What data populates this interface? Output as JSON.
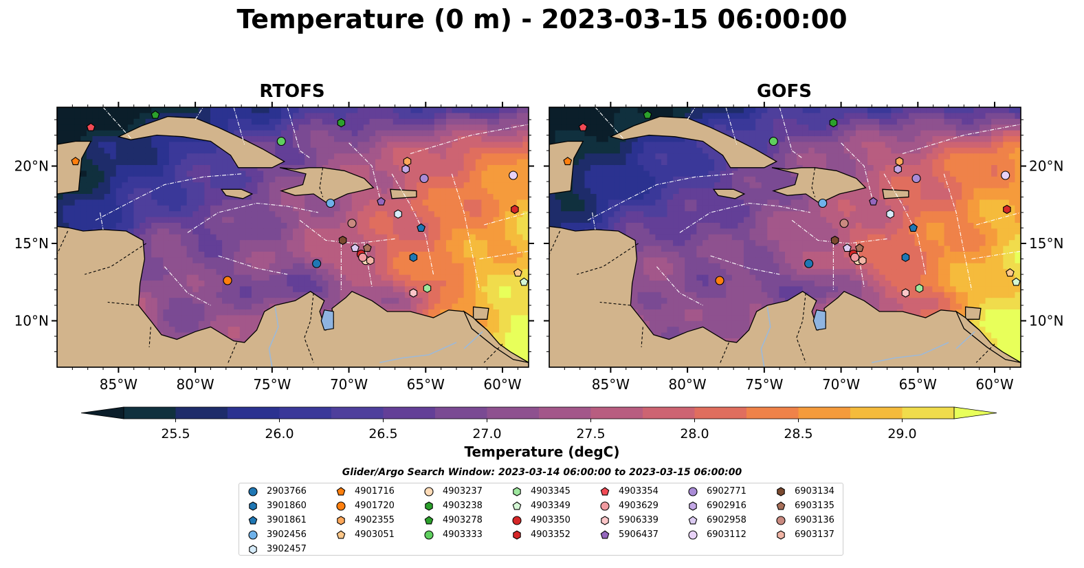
{
  "title": "Temperature (0 m) - 2023-03-15 06:00:00",
  "panels": [
    {
      "title": "RTOFS"
    },
    {
      "title": "GOFS"
    }
  ],
  "axes": {
    "x_ticks": [
      "85°W",
      "80°W",
      "75°W",
      "70°W",
      "65°W",
      "60°W"
    ],
    "x_values": [
      -85,
      -80,
      -75,
      -70,
      -65,
      -60
    ],
    "y_ticks": [
      "20°N",
      "15°N",
      "10°N"
    ],
    "y_values": [
      20,
      15,
      10
    ],
    "xlim": [
      -89,
      -58.3
    ],
    "ylim": [
      7,
      23.8
    ]
  },
  "colorbar": {
    "label": "Temperature (degC)",
    "range": [
      25.25,
      29.25
    ],
    "step": 0.25,
    "ticks": [
      "25.5",
      "26.0",
      "26.5",
      "27.0",
      "27.5",
      "28.0",
      "28.5",
      "29.0"
    ],
    "tick_values": [
      25.5,
      26.0,
      26.5,
      27.0,
      27.5,
      28.0,
      28.5,
      29.0
    ],
    "colors": [
      "#10303e",
      "#1e2c6a",
      "#2b3290",
      "#3a3899",
      "#4e3f9c",
      "#633f97",
      "#7a4a93",
      "#8e518f",
      "#a3578a",
      "#b85d80",
      "#cd6472",
      "#e06e5e",
      "#ef8249",
      "#f59b3c",
      "#f5bb3c",
      "#f0dc4c"
    ],
    "under_color": "#0b1e2a",
    "over_color": "#e8ff5a"
  },
  "search_window": "Glider/Argo Search Window: 2023-03-14 06:00:00 to 2023-03-15 06:00:00",
  "chart_data": {
    "type": "heatmap",
    "title": "Temperature (0 m) - 2023-03-15 06:00:00",
    "panels": [
      "RTOFS",
      "GOFS"
    ],
    "variable": "Temperature (degC)",
    "depth_m": 0,
    "valid_time": "2023-03-15 06:00:00",
    "xlim": [
      -89,
      -58.3
    ],
    "ylim": [
      7,
      23.8
    ],
    "clim": [
      25.25,
      29.25
    ],
    "floats": [
      {
        "id": "2903766",
        "marker": "circle",
        "color": "#1f77b4",
        "lon": -72.1,
        "lat": 13.7
      },
      {
        "id": "3901860",
        "marker": "hexagon",
        "color": "#1f77b4",
        "lon": -65.8,
        "lat": 14.1
      },
      {
        "id": "3901861",
        "marker": "pentagon",
        "color": "#1f77b4",
        "lon": -65.3,
        "lat": 16.0
      },
      {
        "id": "3902456",
        "marker": "circle",
        "color": "#6fb2ea",
        "lon": -71.2,
        "lat": 17.6
      },
      {
        "id": "3902457",
        "marker": "hexagon",
        "color": "#d6ecfa",
        "lon": -66.8,
        "lat": 16.9
      },
      {
        "id": "4901716",
        "marker": "pentagon",
        "color": "#ff7f0e",
        "lon": -87.8,
        "lat": 20.3
      },
      {
        "id": "4901720",
        "marker": "circle",
        "color": "#ff7f0e",
        "lon": -77.9,
        "lat": 12.6
      },
      {
        "id": "4902355",
        "marker": "hexagon",
        "color": "#ffa85a",
        "lon": -66.2,
        "lat": 20.3
      },
      {
        "id": "4903051",
        "marker": "pentagon",
        "color": "#ffc88a",
        "lon": -59.0,
        "lat": 13.1
      },
      {
        "id": "4903237",
        "marker": "circle",
        "color": "#ffdcb8",
        "lon": -68.9,
        "lat": 13.9
      },
      {
        "id": "4903238",
        "marker": "hexagon",
        "color": "#2ca02c",
        "lon": -70.5,
        "lat": 22.8
      },
      {
        "id": "4903278",
        "marker": "pentagon",
        "color": "#2ca02c",
        "lon": -82.6,
        "lat": 23.3
      },
      {
        "id": "4903333",
        "marker": "circle",
        "color": "#5fcf5f",
        "lon": -74.4,
        "lat": 21.6
      },
      {
        "id": "4903345",
        "marker": "hexagon",
        "color": "#9ee79e",
        "lon": -64.9,
        "lat": 12.1
      },
      {
        "id": "4903349",
        "marker": "pentagon",
        "color": "#d5f7d5",
        "lon": -58.6,
        "lat": 12.5
      },
      {
        "id": "4903350",
        "marker": "circle",
        "color": "#d62728",
        "lon": -69.2,
        "lat": 14.3
      },
      {
        "id": "4903352",
        "marker": "hexagon",
        "color": "#d62728",
        "lon": -59.2,
        "lat": 17.2
      },
      {
        "id": "4903354",
        "marker": "pentagon",
        "color": "#f24a55",
        "lon": -86.8,
        "lat": 22.5
      },
      {
        "id": "4903629",
        "marker": "circle",
        "color": "#f09aa0",
        "lon": -69.1,
        "lat": 14.1
      },
      {
        "id": "5906339",
        "marker": "hexagon",
        "color": "#fbc6c8",
        "lon": -65.8,
        "lat": 11.8
      },
      {
        "id": "5906437",
        "marker": "pentagon",
        "color": "#9467bd",
        "lon": -67.9,
        "lat": 17.7
      },
      {
        "id": "6902771",
        "marker": "circle",
        "color": "#a98bd6",
        "lon": -65.1,
        "lat": 19.2
      },
      {
        "id": "6902916",
        "marker": "hexagon",
        "color": "#c4a8e6",
        "lon": -66.3,
        "lat": 19.8
      },
      {
        "id": "6902958",
        "marker": "pentagon",
        "color": "#dccbf2",
        "lon": -69.6,
        "lat": 14.7
      },
      {
        "id": "6903112",
        "marker": "circle",
        "color": "#e8d2f7",
        "lon": -59.3,
        "lat": 19.4
      },
      {
        "id": "6903134",
        "marker": "hexagon",
        "color": "#7b4a30",
        "lon": -70.4,
        "lat": 15.2
      },
      {
        "id": "6903135",
        "marker": "pentagon",
        "color": "#a8705a",
        "lon": -68.8,
        "lat": 14.7
      },
      {
        "id": "6903136",
        "marker": "circle",
        "color": "#c98a80",
        "lon": -69.8,
        "lat": 16.3
      },
      {
        "id": "6903137",
        "marker": "hexagon",
        "color": "#f1b5a6",
        "lon": -68.6,
        "lat": 13.9
      }
    ]
  },
  "legend_columns": [
    [
      "2903766",
      "3901860",
      "3901861",
      "3902456",
      "3902457"
    ],
    [
      "4901716",
      "4901720",
      "4902355",
      "4903051"
    ],
    [
      "4903237",
      "4903238",
      "4903278",
      "4903333"
    ],
    [
      "4903345",
      "4903349",
      "4903350",
      "4903352"
    ],
    [
      "4903354",
      "4903629",
      "5906339",
      "5906437"
    ],
    [
      "6902771",
      "6902916",
      "6902958",
      "6903112"
    ],
    [
      "6903134",
      "6903135",
      "6903136",
      "6903137"
    ]
  ]
}
